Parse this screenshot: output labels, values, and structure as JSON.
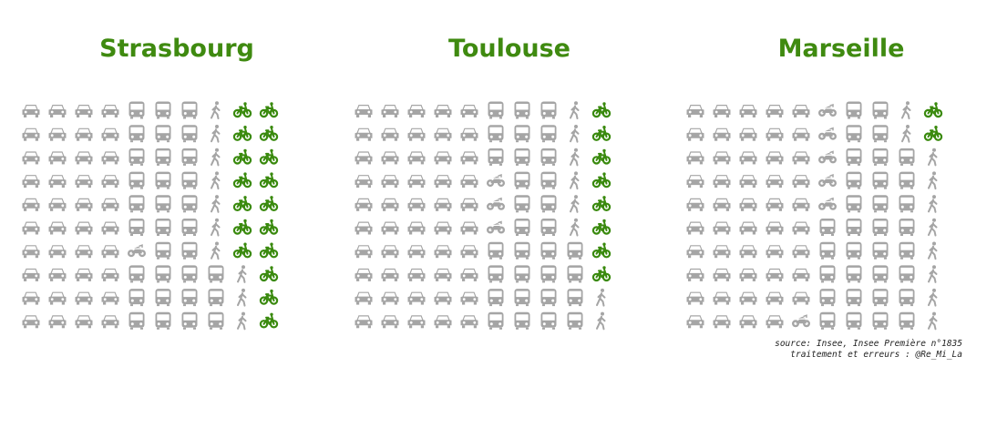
{
  "colors": {
    "title": "#3f8a10",
    "bike": "#3a8a0e",
    "other": "#a5a5a5"
  },
  "chart_data": [
    {
      "type": "pictogram",
      "title": "Strasbourg",
      "units_per_row": 10,
      "rows": [
        [
          "car",
          "car",
          "car",
          "car",
          "bus",
          "bus",
          "bus",
          "walk",
          "bike",
          "bike"
        ],
        [
          "car",
          "car",
          "car",
          "car",
          "bus",
          "bus",
          "bus",
          "walk",
          "bike",
          "bike"
        ],
        [
          "car",
          "car",
          "car",
          "car",
          "bus",
          "bus",
          "bus",
          "walk",
          "bike",
          "bike"
        ],
        [
          "car",
          "car",
          "car",
          "car",
          "bus",
          "bus",
          "bus",
          "walk",
          "bike",
          "bike"
        ],
        [
          "car",
          "car",
          "car",
          "car",
          "bus",
          "bus",
          "bus",
          "walk",
          "bike",
          "bike"
        ],
        [
          "car",
          "car",
          "car",
          "car",
          "bus",
          "bus",
          "bus",
          "walk",
          "bike",
          "bike"
        ],
        [
          "car",
          "car",
          "car",
          "car",
          "moto",
          "bus",
          "bus",
          "walk",
          "bike",
          "bike"
        ],
        [
          "car",
          "car",
          "car",
          "car",
          "bus",
          "bus",
          "bus",
          "bus",
          "walk",
          "bike"
        ],
        [
          "car",
          "car",
          "car",
          "car",
          "bus",
          "bus",
          "bus",
          "bus",
          "walk",
          "bike"
        ],
        [
          "car",
          "car",
          "car",
          "car",
          "bus",
          "bus",
          "bus",
          "bus",
          "walk",
          "bike"
        ]
      ]
    },
    {
      "type": "pictogram",
      "title": "Toulouse",
      "units_per_row": 10,
      "rows": [
        [
          "car",
          "car",
          "car",
          "car",
          "car",
          "bus",
          "bus",
          "bus",
          "walk",
          "bike"
        ],
        [
          "car",
          "car",
          "car",
          "car",
          "car",
          "bus",
          "bus",
          "bus",
          "walk",
          "bike"
        ],
        [
          "car",
          "car",
          "car",
          "car",
          "car",
          "bus",
          "bus",
          "bus",
          "walk",
          "bike"
        ],
        [
          "car",
          "car",
          "car",
          "car",
          "car",
          "moto",
          "bus",
          "bus",
          "walk",
          "bike"
        ],
        [
          "car",
          "car",
          "car",
          "car",
          "car",
          "moto",
          "bus",
          "bus",
          "walk",
          "bike"
        ],
        [
          "car",
          "car",
          "car",
          "car",
          "car",
          "moto",
          "bus",
          "bus",
          "walk",
          "bike"
        ],
        [
          "car",
          "car",
          "car",
          "car",
          "car",
          "bus",
          "bus",
          "bus",
          "bus",
          "bike"
        ],
        [
          "car",
          "car",
          "car",
          "car",
          "car",
          "bus",
          "bus",
          "bus",
          "bus",
          "bike"
        ],
        [
          "car",
          "car",
          "car",
          "car",
          "car",
          "bus",
          "bus",
          "bus",
          "bus",
          "walk"
        ],
        [
          "car",
          "car",
          "car",
          "car",
          "car",
          "bus",
          "bus",
          "bus",
          "bus",
          "walk"
        ]
      ]
    },
    {
      "type": "pictogram",
      "title": "Marseille",
      "units_per_row": 10,
      "rows": [
        [
          "car",
          "car",
          "car",
          "car",
          "car",
          "moto",
          "bus",
          "bus",
          "walk",
          "bike"
        ],
        [
          "car",
          "car",
          "car",
          "car",
          "car",
          "moto",
          "bus",
          "bus",
          "walk",
          "bike"
        ],
        [
          "car",
          "car",
          "car",
          "car",
          "car",
          "moto",
          "bus",
          "bus",
          "bus",
          "walk"
        ],
        [
          "car",
          "car",
          "car",
          "car",
          "car",
          "moto",
          "bus",
          "bus",
          "bus",
          "walk"
        ],
        [
          "car",
          "car",
          "car",
          "car",
          "car",
          "moto",
          "bus",
          "bus",
          "bus",
          "walk"
        ],
        [
          "car",
          "car",
          "car",
          "car",
          "car",
          "bus",
          "bus",
          "bus",
          "bus",
          "walk"
        ],
        [
          "car",
          "car",
          "car",
          "car",
          "car",
          "bus",
          "bus",
          "bus",
          "bus",
          "walk"
        ],
        [
          "car",
          "car",
          "car",
          "car",
          "car",
          "bus",
          "bus",
          "bus",
          "bus",
          "walk"
        ],
        [
          "car",
          "car",
          "car",
          "car",
          "car",
          "bus",
          "bus",
          "bus",
          "bus",
          "walk"
        ],
        [
          "car",
          "car",
          "car",
          "car",
          "moto",
          "bus",
          "bus",
          "bus",
          "bus",
          "walk"
        ]
      ]
    }
  ],
  "source": {
    "line1": "source: Insee, Insee Première n°1835",
    "line2": "traitement et erreurs : @Re_Mi_La"
  }
}
